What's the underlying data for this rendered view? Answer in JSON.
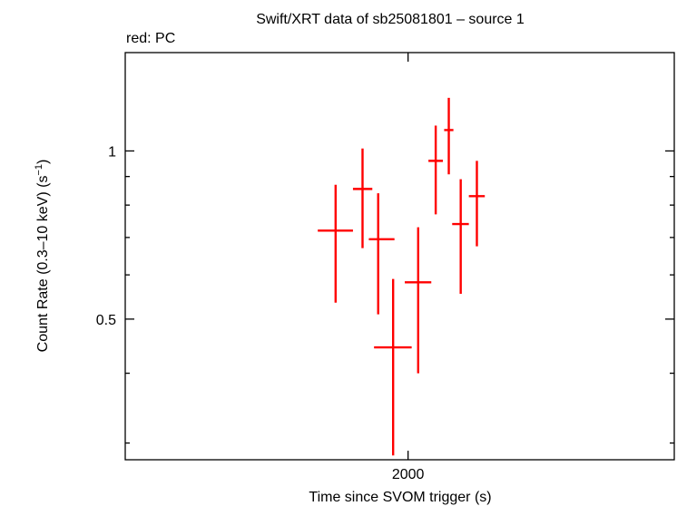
{
  "chart_data": {
    "type": "scatter",
    "title": "Swift/XRT data of sb25081801 – source 1",
    "subtitle": "red: PC",
    "xlabel": "Time since SVOM trigger (s)",
    "ylabel_main": "Count Rate (0.3–10 keV) (s",
    "ylabel_sup": "−1",
    "ylabel_end": ")",
    "x_scale": "log",
    "y_scale": "log",
    "xlim": [
      1300,
      3000
    ],
    "ylim": [
      0.28,
      1.5
    ],
    "x_major_ticks": [
      2000
    ],
    "x_tick_labels": [
      "2000"
    ],
    "y_major_ticks": [
      0.5,
      1
    ],
    "y_tick_labels": [
      "0.5",
      "1"
    ],
    "y_minor_ticks": [
      0.3,
      0.4,
      0.6,
      0.7,
      0.8,
      0.9
    ],
    "grid": false,
    "series": [
      {
        "color": "#ff0000",
        "points": [
          {
            "x": 1791,
            "xerr_lo": 48,
            "xerr_hi": 48,
            "y": 0.72,
            "yerr_lo": 0.185,
            "yerr_hi": 0.15
          },
          {
            "x": 1866,
            "xerr_lo": 27,
            "xerr_hi": 28,
            "y": 0.855,
            "yerr_lo": 0.185,
            "yerr_hi": 0.155
          },
          {
            "x": 1911,
            "xerr_lo": 27,
            "xerr_hi": 48,
            "y": 0.695,
            "yerr_lo": 0.185,
            "yerr_hi": 0.145
          },
          {
            "x": 1955,
            "xerr_lo": 56,
            "xerr_hi": 56,
            "y": 0.445,
            "yerr_lo": 0.16,
            "yerr_hi": 0.145
          },
          {
            "x": 2031,
            "xerr_lo": 41,
            "xerr_hi": 41,
            "y": 0.582,
            "yerr_lo": 0.182,
            "yerr_hi": 0.148
          },
          {
            "x": 2086,
            "xerr_lo": 23,
            "xerr_hi": 23,
            "y": 0.96,
            "yerr_lo": 0.19,
            "yerr_hi": 0.15
          },
          {
            "x": 2128,
            "xerr_lo": 15,
            "xerr_hi": 15,
            "y": 1.09,
            "yerr_lo": 0.182,
            "yerr_hi": 0.155
          },
          {
            "x": 2167,
            "xerr_lo": 28,
            "xerr_hi": 27,
            "y": 0.74,
            "yerr_lo": 0.185,
            "yerr_hi": 0.15
          },
          {
            "x": 2221,
            "xerr_lo": 27,
            "xerr_hi": 27,
            "y": 0.83,
            "yerr_lo": 0.155,
            "yerr_hi": 0.13
          }
        ]
      }
    ]
  }
}
